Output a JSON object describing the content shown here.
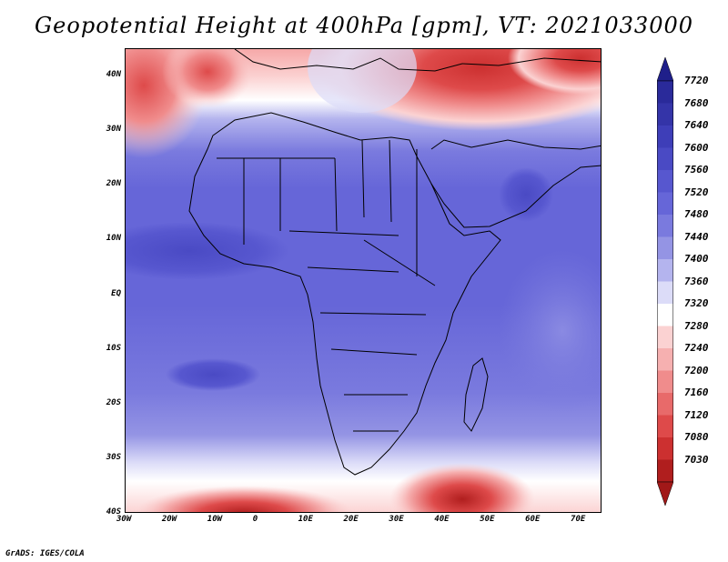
{
  "title": "Geopotential Height at 400hPa [gpm], VT: 2021033000",
  "credit": "GrADS: IGES/COLA",
  "map": {
    "lon_range": [
      -30,
      75
    ],
    "lat_range": [
      -40,
      45
    ],
    "lon_ticks": [
      {
        "value": -30,
        "label": "30W"
      },
      {
        "value": -20,
        "label": "20W"
      },
      {
        "value": -10,
        "label": "10W"
      },
      {
        "value": 0,
        "label": "0"
      },
      {
        "value": 10,
        "label": "10E"
      },
      {
        "value": 20,
        "label": "20E"
      },
      {
        "value": 30,
        "label": "30E"
      },
      {
        "value": 40,
        "label": "40E"
      },
      {
        "value": 50,
        "label": "50E"
      },
      {
        "value": 60,
        "label": "60E"
      },
      {
        "value": 70,
        "label": "70E"
      }
    ],
    "lat_ticks": [
      {
        "value": 40,
        "label": "40N"
      },
      {
        "value": 30,
        "label": "30N"
      },
      {
        "value": 20,
        "label": "20N"
      },
      {
        "value": 10,
        "label": "10N"
      },
      {
        "value": 0,
        "label": "EQ"
      },
      {
        "value": -10,
        "label": "10S"
      },
      {
        "value": -20,
        "label": "20S"
      },
      {
        "value": -30,
        "label": "30S"
      },
      {
        "value": -40,
        "label": "40S"
      }
    ]
  },
  "colorbar": {
    "labels": [
      "7720",
      "7680",
      "7640",
      "7600",
      "7560",
      "7520",
      "7480",
      "7440",
      "7400",
      "7360",
      "7320",
      "7280",
      "7240",
      "7200",
      "7160",
      "7120",
      "7080",
      "7030"
    ],
    "colors": [
      "#2a2a9a",
      "#3434a8",
      "#3e3eb8",
      "#4a4ac4",
      "#5757cf",
      "#6666d8",
      "#7a7ade",
      "#9494e4",
      "#b4b4ee",
      "#dcdcf8",
      "#ffffff",
      "#fbd2d2",
      "#f6b0b0",
      "#f08c8c",
      "#e86a6a",
      "#de4a4a",
      "#cc3030",
      "#b01e1e"
    ],
    "top_arrow_color": "#1f1f8a",
    "bottom_arrow_color": "#a11818"
  }
}
